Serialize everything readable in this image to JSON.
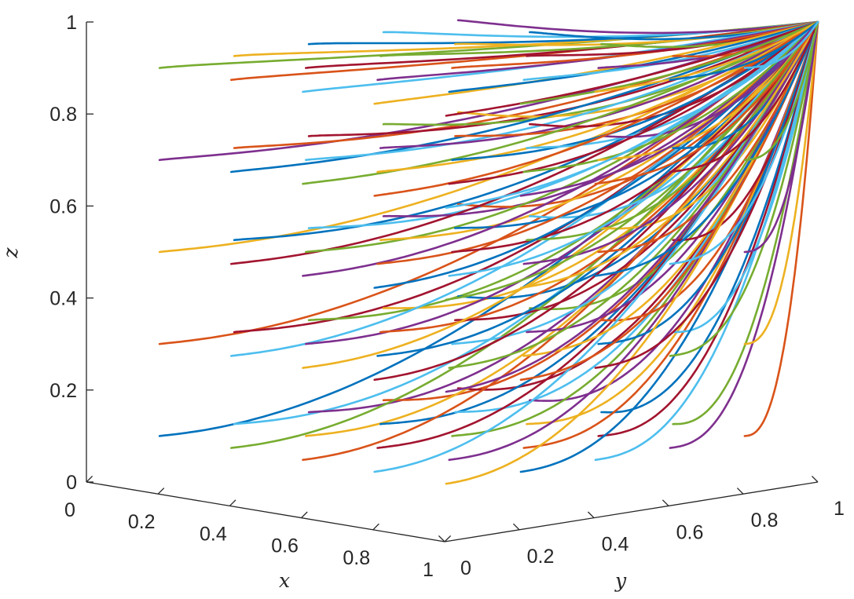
{
  "chart_data": {
    "type": "line",
    "projection": "3d",
    "title": "",
    "xlabel": "x",
    "ylabel": "y",
    "zlabel": "z",
    "xlim": [
      0,
      1
    ],
    "ylim": [
      0,
      1
    ],
    "zlim": [
      0,
      1
    ],
    "grid": false,
    "x_ticks": [
      0,
      0.2,
      0.4,
      0.6,
      0.8,
      1
    ],
    "y_ticks": [
      0,
      0.2,
      0.4,
      0.6,
      0.8,
      1
    ],
    "z_ticks": [
      0,
      0.2,
      0.4,
      0.6,
      0.8,
      1
    ],
    "x_tick_labels": [
      "0",
      "0.2",
      "0.4",
      "0.6",
      "0.8",
      "1"
    ],
    "y_tick_labels": [
      "0",
      "0.2",
      "0.4",
      "0.6",
      "0.8",
      "1"
    ],
    "z_tick_labels": [
      "0",
      "0.2",
      "0.4",
      "0.6",
      "0.8",
      "1"
    ],
    "endpoint": [
      1,
      1,
      1
    ],
    "description": "",
    "colors": [
      "#0072BD",
      "#D95319",
      "#EDB120",
      "#7E2F8E",
      "#77AC30",
      "#4DBEEE",
      "#A2142F"
    ],
    "x0_values": [
      0.1,
      0.3,
      0.5,
      0.7,
      0.9
    ],
    "y0_values": [
      0.1,
      0.3,
      0.5,
      0.7,
      0.9
    ],
    "z0_values": [
      0.1,
      0.3,
      0.5,
      0.7,
      0.9
    ]
  }
}
